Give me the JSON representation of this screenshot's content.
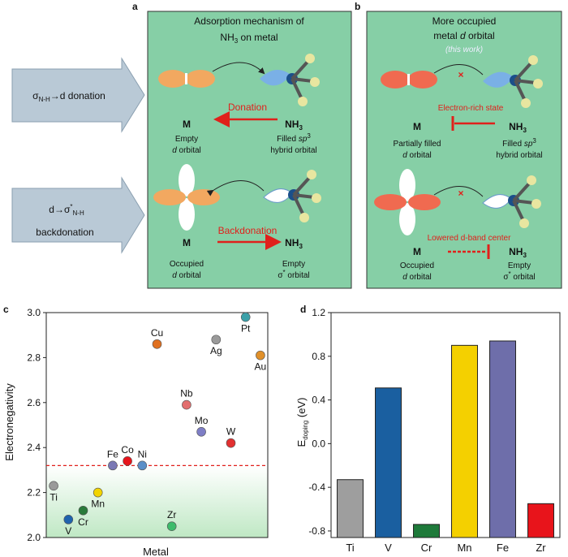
{
  "diagram": {
    "panel_labels": [
      "a",
      "b",
      "c",
      "d"
    ],
    "left_boxes": [
      {
        "parts": [
          "σ",
          "N-H",
          "→d donation"
        ]
      },
      {
        "parts": [
          "d→σ",
          "*",
          "N-H"
        ],
        "line2": "backdonation"
      }
    ],
    "panel_a": {
      "title_line1": "Adsorption mechanism of",
      "title_line2": [
        "NH",
        "3",
        " on metal"
      ],
      "metal": "M",
      "ligand": [
        "NH",
        "3"
      ],
      "donation": "Donation",
      "empty": "Empty",
      "d_orbital": [
        "d",
        " orbital"
      ],
      "filled": [
        "Filled ",
        "sp",
        "3"
      ],
      "hybrid": "hybrid orbital",
      "backdonation": "Backdonation",
      "occupied": "Occupied",
      "empty2": "Empty",
      "sigma_orbital": [
        "σ",
        "*",
        " orbital"
      ]
    },
    "panel_b": {
      "title_line1": "More occupied",
      "title_line2": [
        "metal ",
        "d",
        " orbital"
      ],
      "note": "(this work)",
      "cross": "×",
      "metal": "M",
      "ligand": [
        "NH",
        "3"
      ],
      "electron_rich": "Electron-rich state",
      "partially": "Partially filled",
      "d_orbital": [
        "d",
        " orbital"
      ],
      "filled": [
        "Filled ",
        "sp",
        "3"
      ],
      "hybrid": "hybrid orbital",
      "lowered": "Lowered d-band center",
      "occupied": "Occupied",
      "empty": "Empty",
      "sigma_orbital": [
        "σ",
        "*",
        " orbital"
      ]
    }
  },
  "chart_data": [
    {
      "type": "scatter",
      "ylabel": "Electronegativity",
      "xlabel": "Metal",
      "categories": [
        "Ti",
        "V",
        "Cr",
        "Mn",
        "Fe",
        "Co",
        "Ni",
        "Cu",
        "Zr",
        "Nb",
        "Mo",
        "Ag",
        "W",
        "Pt",
        "Au"
      ],
      "values": [
        2.23,
        2.08,
        2.12,
        2.2,
        2.32,
        2.34,
        2.32,
        2.86,
        2.05,
        2.59,
        2.47,
        2.88,
        2.42,
        2.98,
        2.81
      ],
      "colors": [
        "#9a9a9a",
        "#1f63ad",
        "#2a7a3a",
        "#f2d400",
        "#7a78b4",
        "#e8141b",
        "#5b8fc8",
        "#e07020",
        "#3dbb6b",
        "#e26e6e",
        "#7e7ec6",
        "#9a9a9a",
        "#e23030",
        "#3aa0a8",
        "#e0902a"
      ],
      "hline": 2.32,
      "ylim": [
        2.0,
        3.0
      ],
      "yticks": [
        {
          "value": 2.0,
          "label": "2.0"
        },
        2.2,
        2.4,
        2.6,
        2.8,
        {
          "value": 3.0,
          "label": "3.0"
        }
      ]
    },
    {
      "type": "bar",
      "ylabel": [
        "E",
        "doping",
        " (eV)"
      ],
      "categories": [
        "Ti",
        "V",
        "Cr",
        "Mn",
        "Fe",
        "Zr"
      ],
      "values": [
        -0.33,
        0.51,
        -0.74,
        0.9,
        0.94,
        -0.55
      ],
      "colors": [
        "#9e9e9e",
        "#1a5fa0",
        "#1e7a3a",
        "#f4d000",
        "#6e6eaa",
        "#e8141b"
      ],
      "ylim": [
        -0.86,
        1.2
      ],
      "yticks": [
        1.2,
        0.8,
        0.4,
        {
          "value": 0.0,
          "label": "0.0"
        },
        -0.4,
        -0.8
      ]
    }
  ]
}
